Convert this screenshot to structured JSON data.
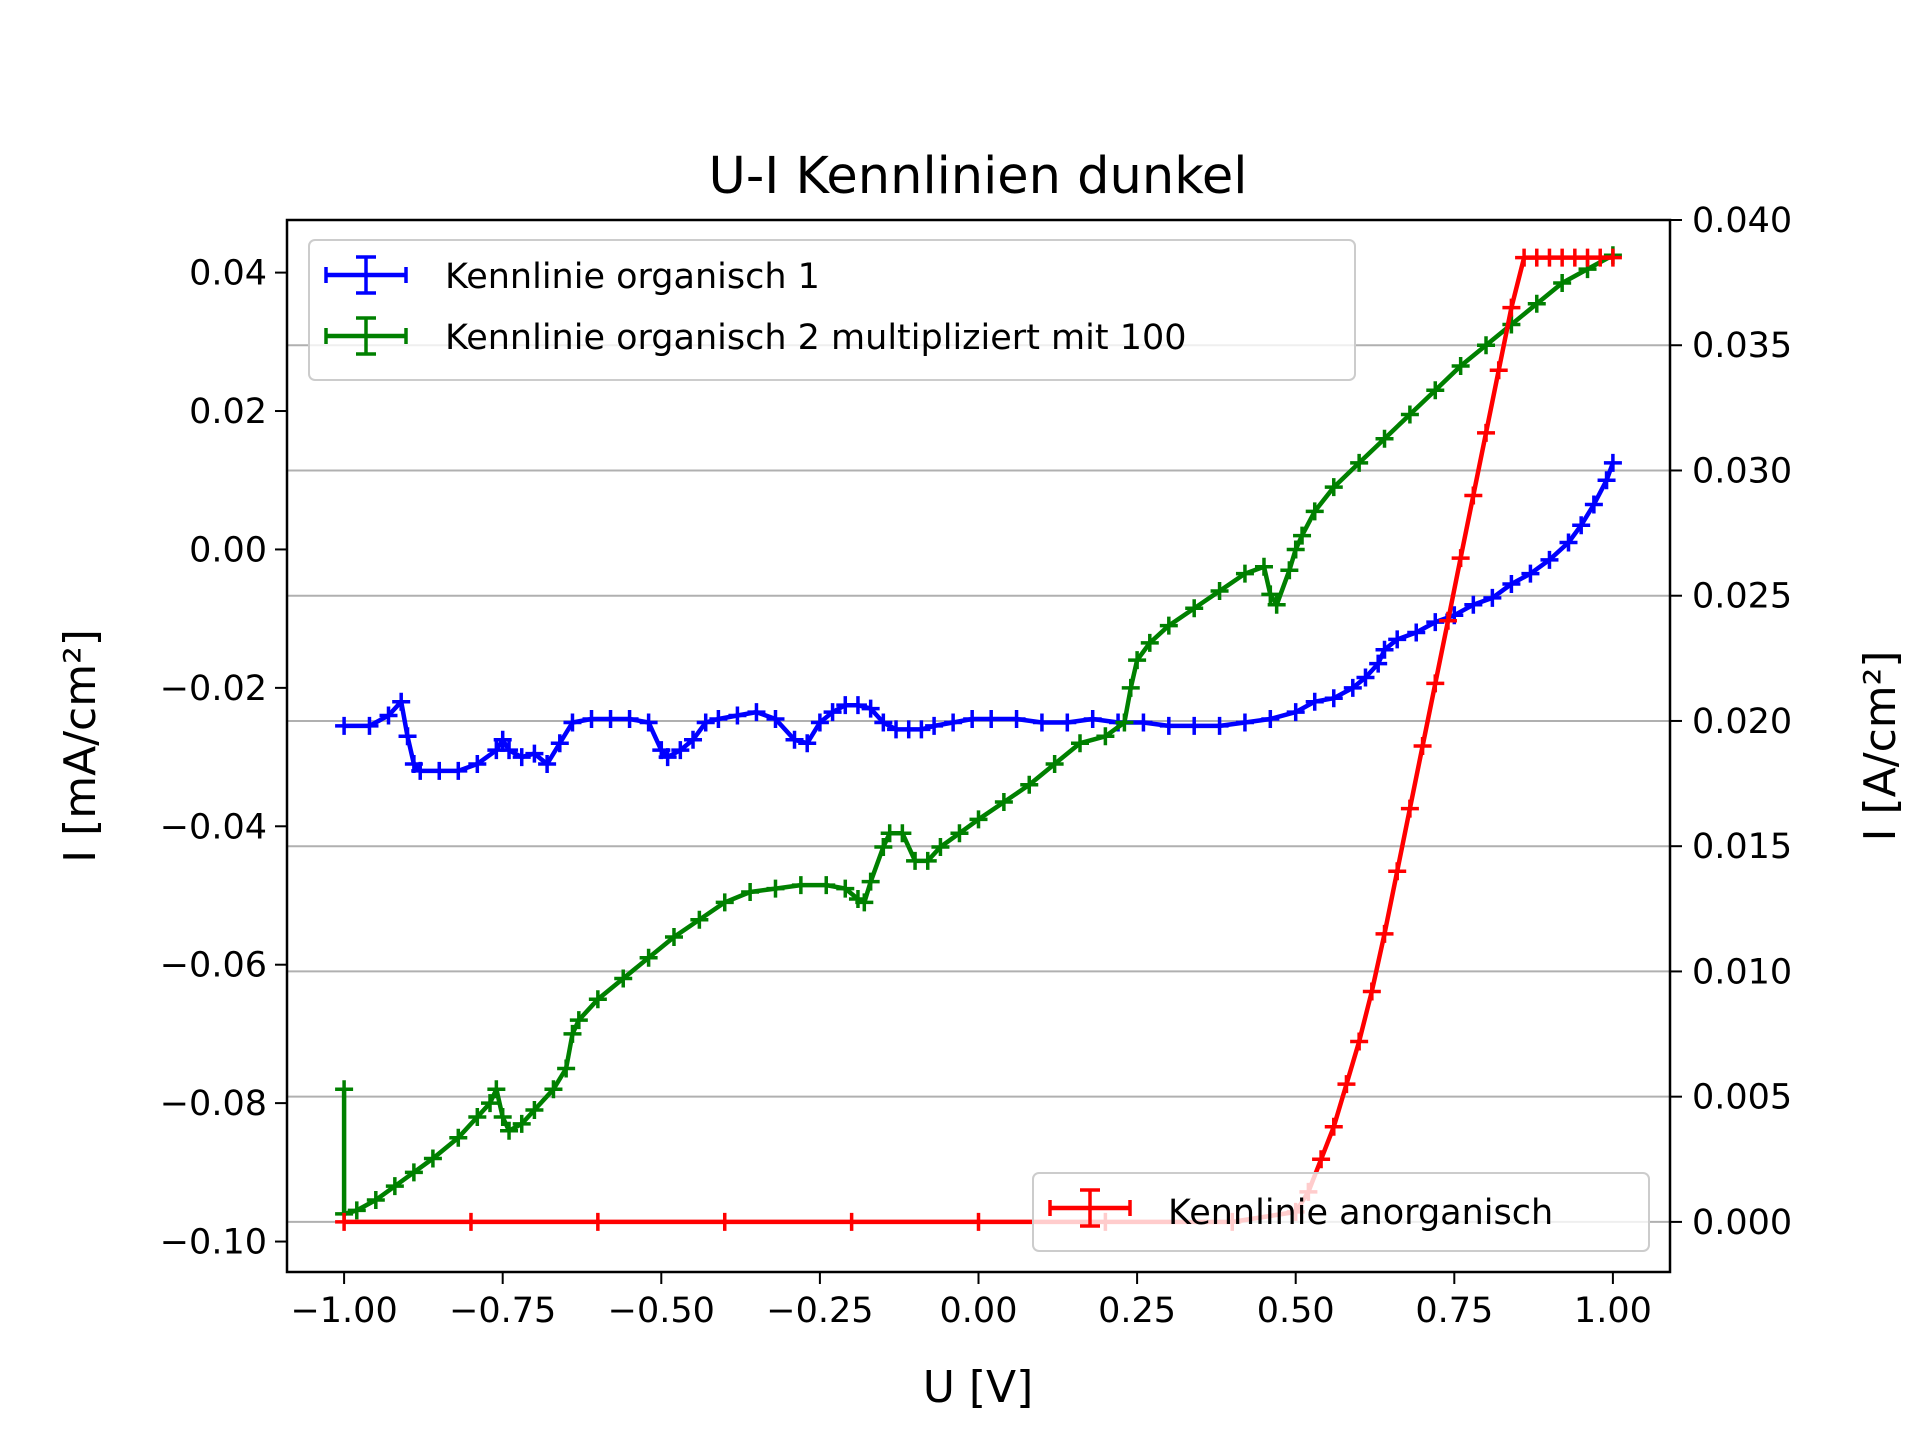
{
  "chart_data": {
    "type": "line",
    "title": "U-I Kennlinien dunkel",
    "xlabel": "U [V]",
    "ylabel": "I [mA/cm²]",
    "ylabel_right": "I [A/cm²]",
    "xlim": [
      -1.09,
      1.09
    ],
    "ylim": [
      -0.1044,
      0.0476
    ],
    "ylim_right": [
      -0.002,
      0.04
    ],
    "grid": "horizontal lines at right-axis ticks",
    "x_ticks": [
      "−1.00",
      "−0.75",
      "−0.50",
      "−0.25",
      "0.00",
      "0.25",
      "0.50",
      "0.75",
      "1.00"
    ],
    "y_ticks": [
      "−0.10",
      "−0.08",
      "−0.06",
      "−0.04",
      "−0.02",
      "0.00",
      "0.02",
      "0.04"
    ],
    "y_ticks_right": [
      "0.000",
      "0.005",
      "0.010",
      "0.015",
      "0.020",
      "0.025",
      "0.030",
      "0.035",
      "0.040"
    ],
    "legend_top_left": [
      "Kennlinie organisch 1",
      "Kennlinie organisch 2 multipliziert mit 100"
    ],
    "legend_bottom_right": [
      "Kennlinie anorganisch"
    ],
    "series": [
      {
        "name": "Kennlinie organisch 1",
        "color": "#0000ff",
        "axis": "left",
        "x": [
          -1.0,
          -0.96,
          -0.93,
          -0.91,
          -0.9,
          -0.89,
          -0.88,
          -0.85,
          -0.82,
          -0.79,
          -0.76,
          -0.75,
          -0.74,
          -0.72,
          -0.7,
          -0.68,
          -0.66,
          -0.64,
          -0.61,
          -0.58,
          -0.55,
          -0.52,
          -0.5,
          -0.49,
          -0.47,
          -0.45,
          -0.43,
          -0.41,
          -0.38,
          -0.35,
          -0.32,
          -0.29,
          -0.27,
          -0.25,
          -0.23,
          -0.21,
          -0.19,
          -0.17,
          -0.15,
          -0.13,
          -0.11,
          -0.09,
          -0.07,
          -0.04,
          -0.01,
          0.02,
          0.06,
          0.1,
          0.14,
          0.18,
          0.22,
          0.26,
          0.3,
          0.34,
          0.38,
          0.42,
          0.46,
          0.5,
          0.53,
          0.56,
          0.59,
          0.61,
          0.63,
          0.64,
          0.66,
          0.69,
          0.72,
          0.75,
          0.78,
          0.81,
          0.84,
          0.87,
          0.9,
          0.93,
          0.95,
          0.97,
          0.99,
          1.0
        ],
        "y": [
          -0.0255,
          -0.0255,
          -0.024,
          -0.022,
          -0.027,
          -0.031,
          -0.032,
          -0.032,
          -0.032,
          -0.031,
          -0.029,
          -0.0275,
          -0.029,
          -0.03,
          -0.0295,
          -0.031,
          -0.028,
          -0.025,
          -0.0245,
          -0.0245,
          -0.0245,
          -0.025,
          -0.029,
          -0.03,
          -0.029,
          -0.0275,
          -0.025,
          -0.0245,
          -0.024,
          -0.0235,
          -0.0245,
          -0.0275,
          -0.028,
          -0.025,
          -0.0235,
          -0.0225,
          -0.0225,
          -0.023,
          -0.025,
          -0.026,
          -0.026,
          -0.026,
          -0.0255,
          -0.025,
          -0.0245,
          -0.0245,
          -0.0245,
          -0.025,
          -0.025,
          -0.0245,
          -0.025,
          -0.025,
          -0.0255,
          -0.0255,
          -0.0255,
          -0.025,
          -0.0245,
          -0.0235,
          -0.022,
          -0.0215,
          -0.02,
          -0.0185,
          -0.0165,
          -0.0145,
          -0.013,
          -0.012,
          -0.0105,
          -0.0095,
          -0.008,
          -0.007,
          -0.005,
          -0.0035,
          -0.0015,
          0.001,
          0.0035,
          0.0065,
          0.01,
          0.0125
        ]
      },
      {
        "name": "Kennlinie organisch 2 multipliziert mit 100",
        "color": "#008000",
        "axis": "left",
        "x": [
          -1.0,
          -1.0,
          -0.98,
          -0.95,
          -0.92,
          -0.89,
          -0.86,
          -0.82,
          -0.79,
          -0.77,
          -0.76,
          -0.75,
          -0.74,
          -0.72,
          -0.7,
          -0.67,
          -0.65,
          -0.64,
          -0.63,
          -0.6,
          -0.56,
          -0.52,
          -0.48,
          -0.44,
          -0.4,
          -0.36,
          -0.32,
          -0.28,
          -0.24,
          -0.21,
          -0.19,
          -0.18,
          -0.17,
          -0.15,
          -0.14,
          -0.12,
          -0.1,
          -0.08,
          -0.06,
          -0.03,
          0.0,
          0.04,
          0.08,
          0.12,
          0.16,
          0.2,
          0.23,
          0.24,
          0.25,
          0.27,
          0.3,
          0.34,
          0.38,
          0.42,
          0.45,
          0.46,
          0.47,
          0.49,
          0.5,
          0.51,
          0.53,
          0.56,
          0.6,
          0.64,
          0.68,
          0.72,
          0.76,
          0.8,
          0.84,
          0.88,
          0.92,
          0.96,
          1.0
        ],
        "y": [
          -0.078,
          -0.096,
          -0.0955,
          -0.094,
          -0.092,
          -0.09,
          -0.088,
          -0.085,
          -0.082,
          -0.08,
          -0.078,
          -0.082,
          -0.084,
          -0.083,
          -0.081,
          -0.078,
          -0.075,
          -0.07,
          -0.068,
          -0.065,
          -0.062,
          -0.059,
          -0.056,
          -0.0535,
          -0.051,
          -0.0495,
          -0.049,
          -0.0485,
          -0.0485,
          -0.049,
          -0.0505,
          -0.051,
          -0.048,
          -0.043,
          -0.041,
          -0.041,
          -0.045,
          -0.045,
          -0.043,
          -0.041,
          -0.039,
          -0.0365,
          -0.034,
          -0.031,
          -0.028,
          -0.027,
          -0.025,
          -0.02,
          -0.016,
          -0.0135,
          -0.011,
          -0.0085,
          -0.006,
          -0.0035,
          -0.0025,
          -0.0065,
          -0.008,
          -0.003,
          0.0,
          0.002,
          0.0055,
          0.009,
          0.0125,
          0.016,
          0.0195,
          0.023,
          0.0265,
          0.0295,
          0.0325,
          0.0355,
          0.0385,
          0.0405,
          0.0425
        ]
      },
      {
        "name": "Kennlinie anorganisch",
        "color": "#ff0000",
        "axis": "right",
        "x": [
          -1.0,
          -0.8,
          -0.6,
          -0.4,
          -0.2,
          0.0,
          0.2,
          0.4,
          0.5,
          0.52,
          0.54,
          0.56,
          0.58,
          0.6,
          0.62,
          0.64,
          0.66,
          0.68,
          0.7,
          0.72,
          0.74,
          0.76,
          0.78,
          0.8,
          0.82,
          0.84,
          0.86,
          0.88,
          0.9,
          0.92,
          0.94,
          0.96,
          0.98,
          1.0
        ],
        "y": [
          0.0,
          0.0,
          0.0,
          0.0,
          0.0,
          0.0,
          0.0,
          0.0,
          0.0004,
          0.0012,
          0.0025,
          0.0038,
          0.0055,
          0.0072,
          0.0092,
          0.0115,
          0.014,
          0.0165,
          0.019,
          0.0215,
          0.024,
          0.0265,
          0.029,
          0.0315,
          0.034,
          0.0365,
          0.0385,
          0.0385,
          0.0385,
          0.0385,
          0.0385,
          0.0385,
          0.0385,
          0.0385
        ]
      }
    ]
  }
}
